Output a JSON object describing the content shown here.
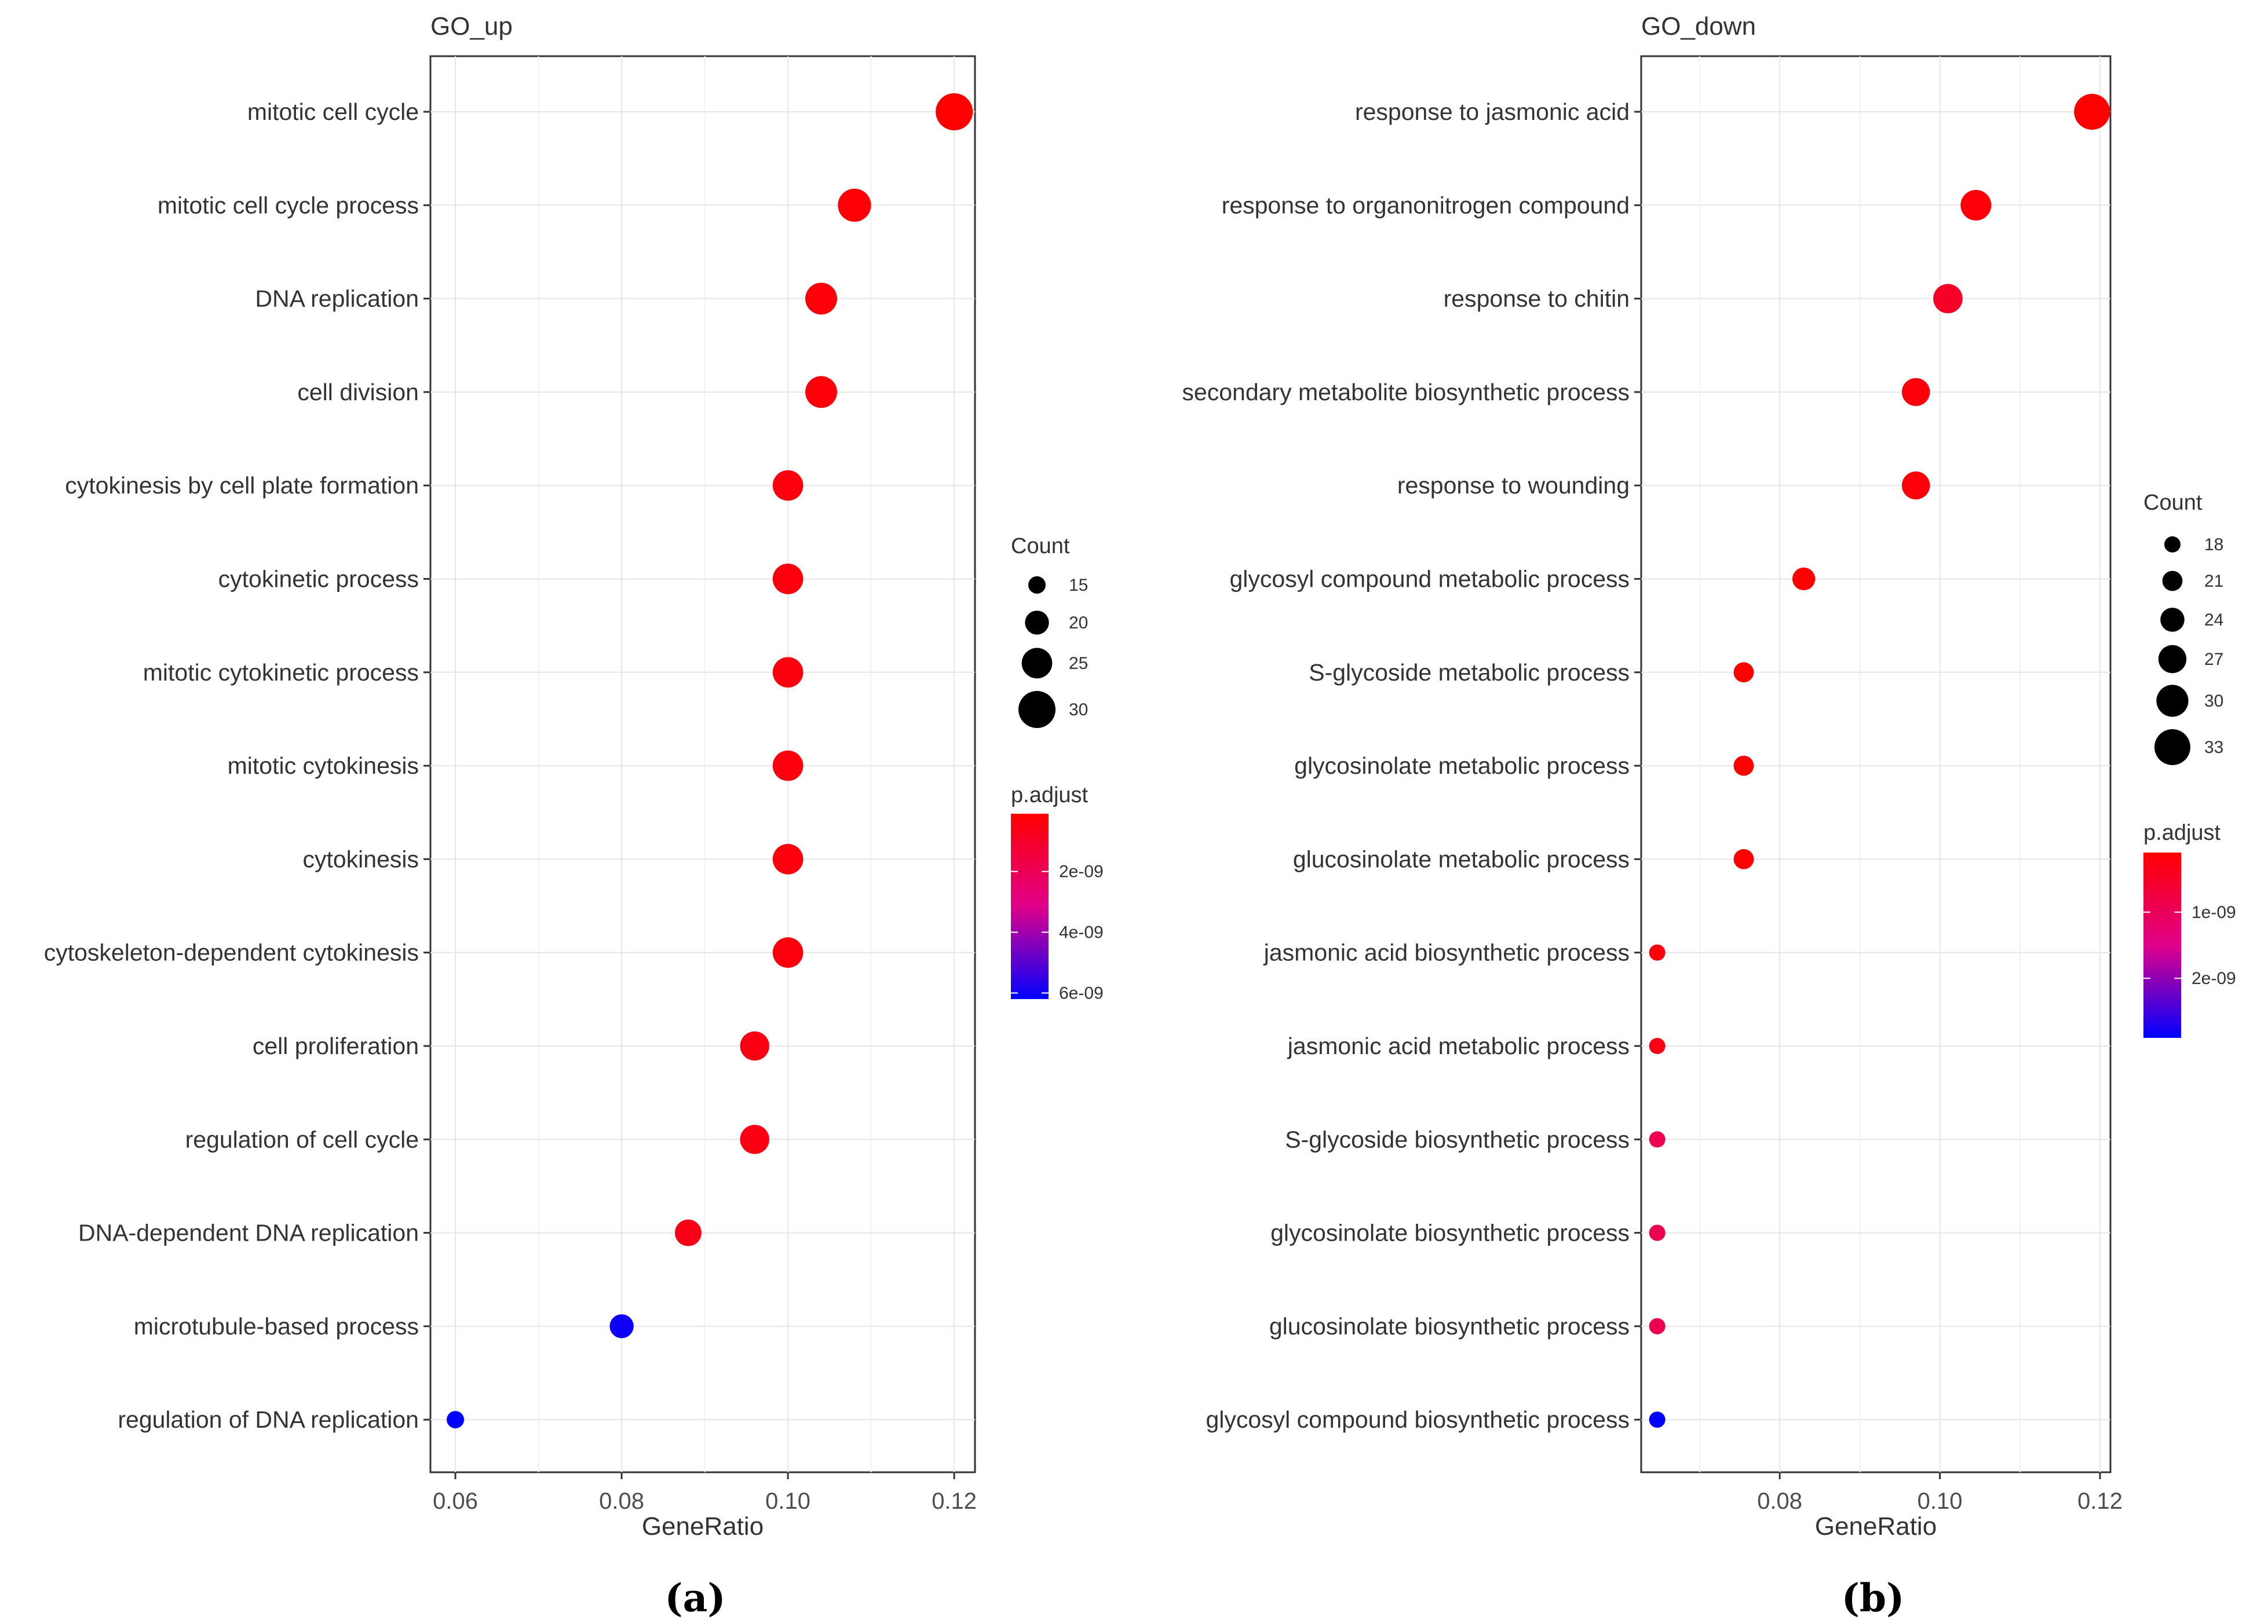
{
  "chart_data": [
    {
      "type": "scatter",
      "title": "GO_up",
      "xlabel": "GeneRatio",
      "ylabel": "",
      "xlim": [
        0.057,
        0.1225
      ],
      "xticks": [
        0.06,
        0.08,
        0.1,
        0.12
      ],
      "xtick_labels": [
        "0.06",
        "0.08",
        "0.10",
        "0.12"
      ],
      "categories": [
        "mitotic cell cycle",
        "mitotic cell cycle process",
        "DNA replication",
        "cell division",
        "cytokinesis by cell plate formation",
        "cytokinetic process",
        "mitotic cytokinetic process",
        "mitotic cytokinesis",
        "cytokinesis",
        "cytoskeleton-dependent cytokinesis",
        "cell proliferation",
        "regulation of cell cycle",
        "DNA-dependent DNA replication",
        "microtubule-based process",
        "regulation of DNA replication"
      ],
      "gene_ratio": [
        0.12,
        0.108,
        0.104,
        0.104,
        0.1,
        0.1,
        0.1,
        0.1,
        0.1,
        0.1,
        0.096,
        0.096,
        0.088,
        0.08,
        0.06
      ],
      "count": [
        30,
        27,
        26,
        26,
        25,
        25,
        25,
        25,
        25,
        25,
        24,
        24,
        22,
        20,
        15
      ],
      "p_adjust": [
        1e-10,
        2e-10,
        3e-10,
        3e-10,
        4e-10,
        4e-10,
        4e-10,
        4e-10,
        4e-10,
        4e-10,
        5e-10,
        5e-10,
        6e-10,
        6e-09,
        6.2e-09
      ],
      "grid": true,
      "legend_position": "right",
      "size_legend": {
        "title": "Count",
        "values": [
          15,
          20,
          25,
          30
        ],
        "labels": [
          "15",
          "20",
          "25",
          "30"
        ]
      },
      "color_legend": {
        "title": "p.adjust",
        "range": [
          1e-10,
          6.2e-09
        ],
        "ticks": [
          2e-09,
          4e-09,
          6e-09
        ],
        "labels": [
          "2e-09",
          "4e-09",
          "6e-09"
        ],
        "low_color": "#ff0000",
        "high_color": "#0000ff"
      },
      "caption": "(a)"
    },
    {
      "type": "scatter",
      "title": "GO_down",
      "xlabel": "GeneRatio",
      "ylabel": "",
      "xlim": [
        0.0627,
        0.1213
      ],
      "xticks": [
        0.08,
        0.1,
        0.12
      ],
      "xtick_labels": [
        "0.08",
        "0.10",
        "0.12"
      ],
      "categories": [
        "response to jasmonic acid",
        "response to organonitrogen compound",
        "response to chitin",
        "secondary metabolite biosynthetic process",
        "response to wounding",
        "glycosyl compound metabolic process",
        "S-glycoside metabolic process",
        "glycosinolate metabolic process",
        "glucosinolate metabolic process",
        "jasmonic acid biosynthetic process",
        "jasmonic acid metabolic process",
        "S-glycoside biosynthetic process",
        "glycosinolate biosynthetic process",
        "glucosinolate biosynthetic process",
        "glycosyl compound biosynthetic process"
      ],
      "gene_ratio": [
        0.119,
        0.1045,
        0.101,
        0.097,
        0.097,
        0.083,
        0.0755,
        0.0755,
        0.0755,
        0.0647,
        0.0647,
        0.0647,
        0.0647,
        0.0647,
        0.0647
      ],
      "count": [
        33,
        29,
        28,
        27,
        27,
        23,
        21,
        21,
        21,
        18,
        18,
        18,
        18,
        18,
        18
      ],
      "p_adjust": [
        1e-10,
        2e-10,
        5e-10,
        2e-10,
        2e-10,
        1e-10,
        1e-10,
        1e-10,
        1e-10,
        2e-10,
        3e-10,
        9e-10,
        9e-10,
        9e-10,
        2.9e-09
      ],
      "grid": true,
      "legend_position": "right",
      "size_legend": {
        "title": "Count",
        "values": [
          18,
          21,
          24,
          27,
          30,
          33
        ],
        "labels": [
          "18",
          "21",
          "24",
          "27",
          "30",
          "33"
        ]
      },
      "color_legend": {
        "title": "p.adjust",
        "range": [
          1e-10,
          2.9e-09
        ],
        "ticks": [
          1e-09,
          2e-09
        ],
        "labels": [
          "1e-09",
          "2e-09"
        ],
        "low_color": "#ff0000",
        "high_color": "#0000ff"
      },
      "caption": "(b)"
    }
  ]
}
